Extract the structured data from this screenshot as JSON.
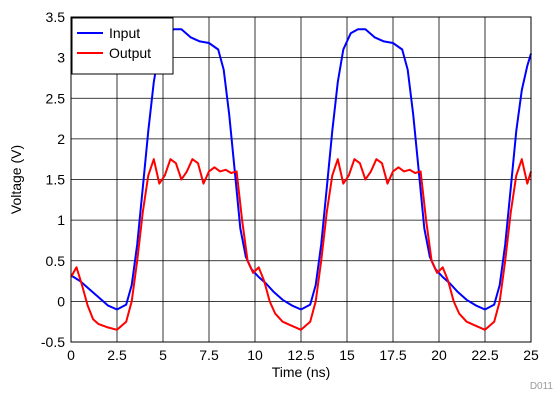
{
  "chart_data": {
    "type": "line",
    "title": "",
    "xlabel": "Time (ns)",
    "ylabel": "Voltage (V)",
    "xlim": [
      0,
      25
    ],
    "ylim": [
      -0.5,
      3.5
    ],
    "xticks": [
      0,
      2.5,
      5,
      7.5,
      10,
      12.5,
      15,
      17.5,
      20,
      22.5,
      25
    ],
    "yticks": [
      -0.5,
      0,
      0.5,
      1,
      1.5,
      2,
      2.5,
      3,
      3.5
    ],
    "xtick_labels": [
      "0",
      "2.5",
      "5",
      "7.5",
      "10",
      "12.5",
      "15",
      "17.5",
      "20",
      "22.5",
      "25"
    ],
    "ytick_labels": [
      "-0.5",
      "0",
      "0.5",
      "1",
      "1.5",
      "2",
      "2.5",
      "3",
      "3.5"
    ],
    "grid": true,
    "legend_position": "top-left",
    "figure_id": "D011",
    "series": [
      {
        "name": "Input",
        "color": "#0000ff",
        "x": [
          0,
          0.5,
          1,
          1.5,
          2,
          2.5,
          3,
          3.3,
          3.6,
          3.9,
          4.2,
          4.5,
          4.8,
          5.2,
          5.6,
          6,
          6.5,
          7,
          7.5,
          8,
          8.3,
          8.6,
          8.9,
          9.2,
          9.5,
          9.8,
          10.2,
          10.6,
          11,
          11.5,
          12,
          12.5,
          13,
          13.3,
          13.6,
          13.9,
          14.2,
          14.5,
          14.8,
          15.2,
          15.6,
          16,
          16.5,
          17,
          17.5,
          18,
          18.3,
          18.6,
          18.9,
          19.2,
          19.5,
          19.8,
          20.2,
          20.6,
          21,
          21.5,
          22,
          22.5,
          23,
          23.3,
          23.6,
          23.9,
          24.2,
          24.5,
          24.8,
          25
        ],
        "values": [
          0.32,
          0.25,
          0.15,
          0.05,
          -0.05,
          -0.1,
          -0.04,
          0.2,
          0.7,
          1.4,
          2.1,
          2.7,
          3.1,
          3.3,
          3.35,
          3.35,
          3.25,
          3.2,
          3.18,
          3.1,
          2.85,
          2.3,
          1.6,
          0.9,
          0.55,
          0.4,
          0.3,
          0.22,
          0.12,
          0.02,
          -0.05,
          -0.1,
          -0.04,
          0.2,
          0.7,
          1.4,
          2.1,
          2.7,
          3.1,
          3.3,
          3.35,
          3.35,
          3.25,
          3.2,
          3.18,
          3.1,
          2.85,
          2.3,
          1.6,
          0.9,
          0.55,
          0.4,
          0.3,
          0.22,
          0.12,
          0.02,
          -0.05,
          -0.1,
          -0.04,
          0.2,
          0.7,
          1.4,
          2.1,
          2.6,
          2.9,
          3.05
        ]
      },
      {
        "name": "Output",
        "color": "#ff0000",
        "x": [
          0,
          0.3,
          0.6,
          0.9,
          1.2,
          1.5,
          2,
          2.5,
          3,
          3.3,
          3.6,
          3.9,
          4.2,
          4.5,
          4.8,
          5.1,
          5.4,
          5.7,
          6,
          6.3,
          6.6,
          6.9,
          7.2,
          7.5,
          7.8,
          8.1,
          8.4,
          8.7,
          9,
          9.3,
          9.6,
          9.9,
          10.2,
          10.5,
          10.8,
          11.1,
          11.5,
          12,
          12.5,
          13,
          13.3,
          13.6,
          13.9,
          14.2,
          14.5,
          14.8,
          15.1,
          15.4,
          15.7,
          16,
          16.3,
          16.6,
          16.9,
          17.2,
          17.5,
          17.8,
          18.1,
          18.4,
          18.7,
          19,
          19.3,
          19.6,
          19.9,
          20.2,
          20.5,
          20.8,
          21.1,
          21.5,
          22,
          22.5,
          23,
          23.3,
          23.6,
          23.9,
          24.2,
          24.5,
          24.8,
          25
        ],
        "values": [
          0.3,
          0.42,
          0.2,
          -0.05,
          -0.22,
          -0.28,
          -0.32,
          -0.35,
          -0.25,
          0.0,
          0.5,
          1.1,
          1.55,
          1.75,
          1.45,
          1.55,
          1.75,
          1.7,
          1.5,
          1.6,
          1.75,
          1.7,
          1.45,
          1.6,
          1.65,
          1.6,
          1.62,
          1.58,
          1.6,
          1.0,
          0.5,
          0.35,
          0.42,
          0.25,
          0.0,
          -0.15,
          -0.25,
          -0.3,
          -0.35,
          -0.25,
          0.0,
          0.5,
          1.1,
          1.55,
          1.75,
          1.45,
          1.55,
          1.75,
          1.7,
          1.5,
          1.6,
          1.75,
          1.7,
          1.45,
          1.6,
          1.65,
          1.6,
          1.62,
          1.58,
          1.6,
          1.0,
          0.5,
          0.35,
          0.42,
          0.25,
          0.0,
          -0.15,
          -0.25,
          -0.3,
          -0.35,
          -0.25,
          0.0,
          0.5,
          1.1,
          1.55,
          1.75,
          1.45,
          1.6
        ]
      }
    ]
  }
}
